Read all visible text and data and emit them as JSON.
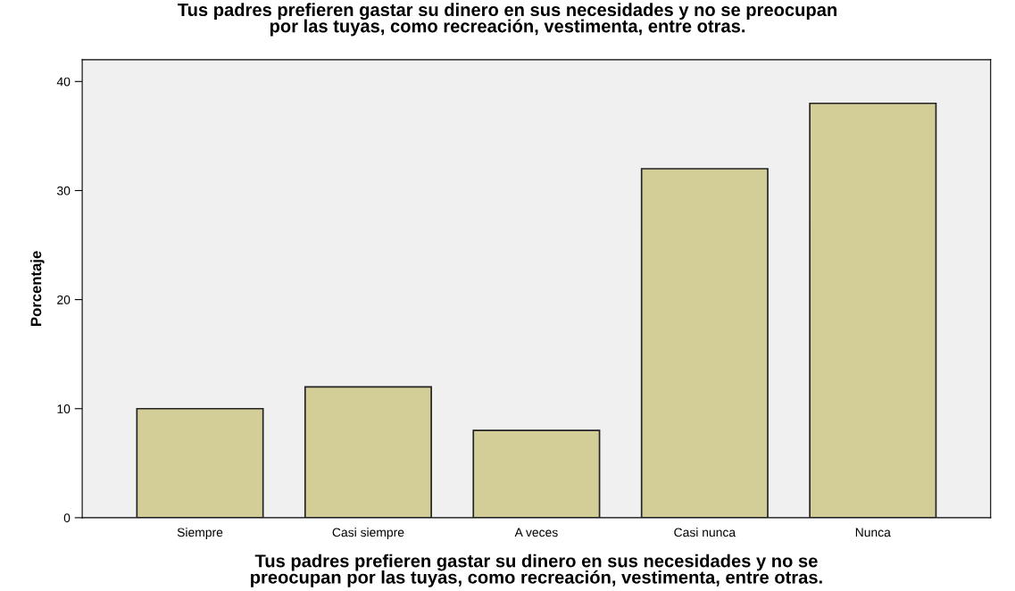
{
  "chart_data": {
    "type": "bar",
    "title": "Tus padres prefieren gastar su dinero en sus necesidades y no se preocupan\npor las tuyas, como recreación, vestimenta, entre otras.",
    "xlabel": "Tus padres prefieren gastar su dinero en sus necesidades y no se\npreocupan por las tuyas, como recreación, vestimenta, entre otras.",
    "ylabel": "Porcentaje",
    "categories": [
      "Siempre",
      "Casi siempre",
      "A veces",
      "Casi nunca",
      "Nunca"
    ],
    "values": [
      10,
      12,
      8,
      32,
      38
    ],
    "color": "#d3ce97",
    "ylim": [
      0,
      42
    ],
    "yticks": [
      0,
      10,
      20,
      30,
      40
    ],
    "grid": false
  }
}
